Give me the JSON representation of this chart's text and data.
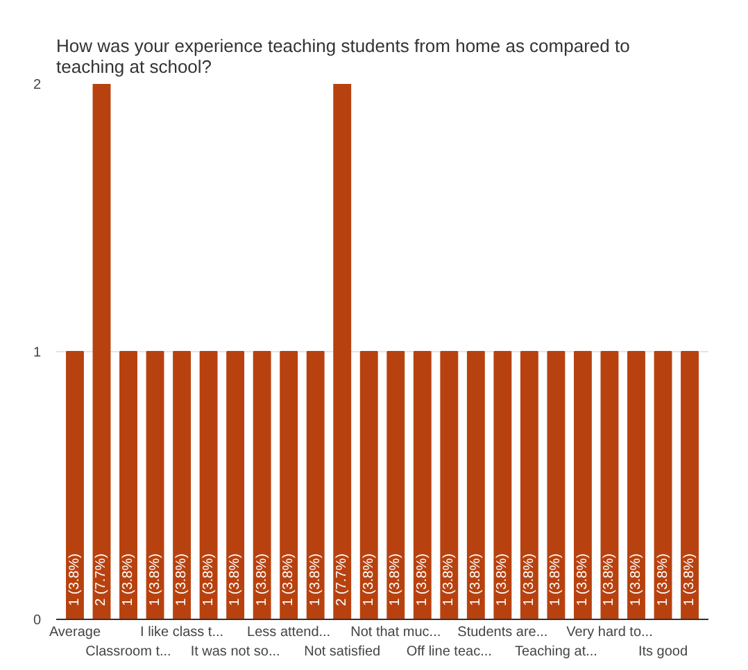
{
  "chart_data": {
    "type": "bar",
    "title": "How was your experience teaching students from home as compared to teaching at school?",
    "categories": [
      "Average",
      null,
      "Classroom t...",
      null,
      "I like class t...",
      null,
      "It was not so...",
      null,
      "Less attend...",
      null,
      "Not satisfied",
      null,
      "Not that muc...",
      null,
      "Off line teac...",
      null,
      "Students are...",
      null,
      "Teaching at...",
      null,
      "Very hard to...",
      null,
      "Its good",
      null
    ],
    "values": [
      1,
      2,
      1,
      1,
      1,
      1,
      1,
      1,
      1,
      1,
      2,
      1,
      1,
      1,
      1,
      1,
      1,
      1,
      1,
      1,
      1,
      1,
      1,
      1
    ],
    "value_labels": [
      "1 (3.8%)",
      "2 (7.7%)",
      "1 (3.8%)",
      "1 (3.8%)",
      "1 (3.8%)",
      "1 (3.8%)",
      "1 (3.8%)",
      "1 (3.8%)",
      "1 (3.8%)",
      "1 (3.8%)",
      "2 (7.7%)",
      "1 (3.8%)",
      "1 (3.8%)",
      "1 (3.8%)",
      "1 (3.8%)",
      "1 (3.8%)",
      "1 (3.8%)",
      "1 (3.8%)",
      "1 (3.8%)",
      "1 (3.8%)",
      "1 (3.8%)",
      "1 (3.8%)",
      "1 (3.8%)",
      "1 (3.8%)"
    ],
    "color": "#b8420f",
    "ylim": [
      0,
      2
    ],
    "yticks": [
      0,
      1,
      2
    ],
    "grid": "y"
  }
}
